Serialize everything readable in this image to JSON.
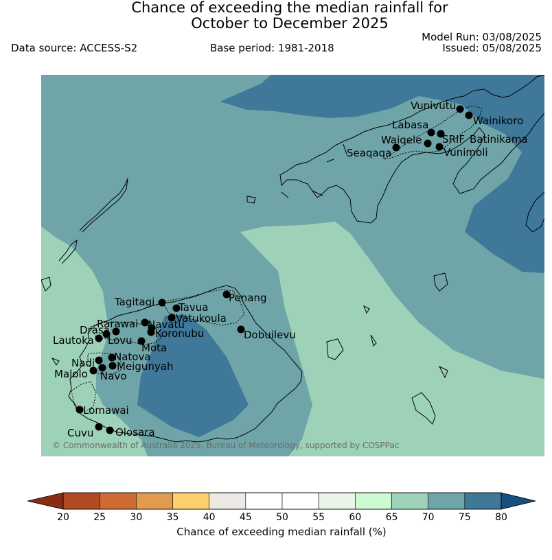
{
  "title": {
    "line1": "Chance of exceeding the median rainfall for",
    "line2": "October to December 2025"
  },
  "data_source": "Data source: ACCESS-S2",
  "base_period": "Base period: 1981-2018",
  "model_run": "Model Run: 03/08/2025",
  "issued": "Issued: 05/08/2025",
  "credit": "© Commonwealth of Australia 2025, Bureau of Meteorology, supported by COSPPac",
  "stations": [
    {
      "name": "Vunivutu"
    },
    {
      "name": "Wainikoro"
    },
    {
      "name": "Labasa"
    },
    {
      "name": "Waiqele"
    },
    {
      "name": "SRIF"
    },
    {
      "name": "Batinikama"
    },
    {
      "name": "Seaqaqa"
    },
    {
      "name": "Vunimoli"
    },
    {
      "name": "Tagitagi"
    },
    {
      "name": "Tavua"
    },
    {
      "name": "Penang"
    },
    {
      "name": "Vatukoula"
    },
    {
      "name": "Rarawai"
    },
    {
      "name": "Navatu"
    },
    {
      "name": "Drasa"
    },
    {
      "name": "Koronubu"
    },
    {
      "name": "Lautoka"
    },
    {
      "name": "Lovu"
    },
    {
      "name": "Dobuilevu"
    },
    {
      "name": "Mota"
    },
    {
      "name": "Natova"
    },
    {
      "name": "Nadi"
    },
    {
      "name": "Meigunyah"
    },
    {
      "name": "Malolo"
    },
    {
      "name": "Navo"
    },
    {
      "name": "Lomawai"
    },
    {
      "name": "Cuvu"
    },
    {
      "name": "Olosara"
    }
  ],
  "colorbar": {
    "label": "Chance of exceeding median rainfall (%)",
    "ticks": [
      "20",
      "25",
      "30",
      "35",
      "40",
      "45",
      "50",
      "55",
      "60",
      "65",
      "70",
      "75",
      "80"
    ],
    "colors": [
      "#8b2b14",
      "#b34a22",
      "#cf6a35",
      "#e29a4c",
      "#fdd06b",
      "#ede8e4",
      "#ffffff",
      "#ffffff",
      "#e8f5e8",
      "#ccfad0",
      "#9dd1b8",
      "#6fa5a8",
      "#3f7899",
      "#17507f"
    ]
  },
  "zones": {
    "c70_75": "#6fa5a8",
    "c75_80": "#3f7899",
    "c65_70": "#9dd1b8"
  }
}
